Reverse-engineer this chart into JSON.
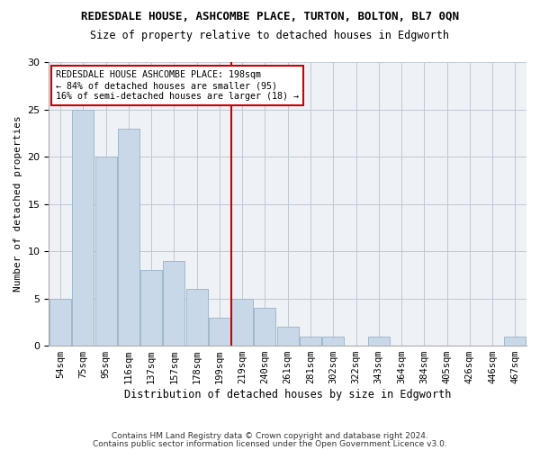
{
  "title": "REDESDALE HOUSE, ASHCOMBE PLACE, TURTON, BOLTON, BL7 0QN",
  "subtitle": "Size of property relative to detached houses in Edgworth",
  "xlabel": "Distribution of detached houses by size in Edgworth",
  "ylabel": "Number of detached properties",
  "bar_color": "#c8d8e8",
  "bar_edgecolor": "#a0b8cc",
  "background_color": "#eef2f7",
  "bins": [
    "54sqm",
    "75sqm",
    "95sqm",
    "116sqm",
    "137sqm",
    "157sqm",
    "178sqm",
    "199sqm",
    "219sqm",
    "240sqm",
    "261sqm",
    "281sqm",
    "302sqm",
    "322sqm",
    "343sqm",
    "364sqm",
    "384sqm",
    "405sqm",
    "426sqm",
    "446sqm",
    "467sqm"
  ],
  "values": [
    5,
    25,
    20,
    23,
    8,
    9,
    6,
    3,
    5,
    4,
    2,
    1,
    1,
    0,
    1,
    0,
    0,
    0,
    0,
    0,
    1
  ],
  "vline_x": 7.5,
  "vline_color": "#cc0000",
  "annotation_title": "REDESDALE HOUSE ASHCOMBE PLACE: 198sqm",
  "annotation_line1": "← 84% of detached houses are smaller (95)",
  "annotation_line2": "16% of semi-detached houses are larger (18) →",
  "annotation_box_color": "#ffffff",
  "annotation_box_edgecolor": "#cc0000",
  "ylim": [
    0,
    30
  ],
  "yticks": [
    0,
    5,
    10,
    15,
    20,
    25,
    30
  ],
  "footer1": "Contains HM Land Registry data © Crown copyright and database right 2024.",
  "footer2": "Contains public sector information licensed under the Open Government Licence v3.0."
}
